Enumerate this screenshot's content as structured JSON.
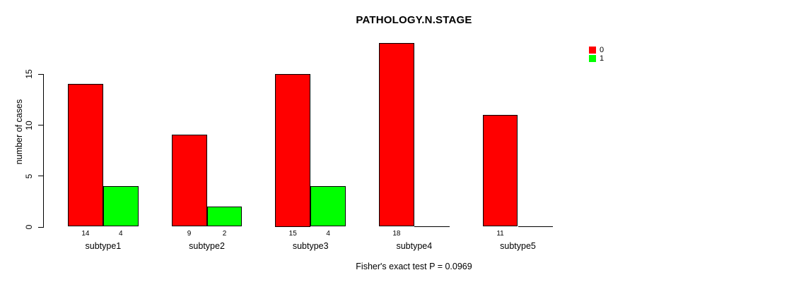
{
  "chart_data": {
    "type": "bar",
    "title": "PATHOLOGY.N.STAGE",
    "ylabel": "number of cases",
    "xlabel": "",
    "caption": "Fisher's exact test P = 0.0969",
    "categories": [
      "subtype1",
      "subtype2",
      "subtype3",
      "subtype4",
      "subtype5"
    ],
    "series": [
      {
        "name": "0",
        "color": "#FF0000",
        "values": [
          14,
          9,
          15,
          18,
          11
        ]
      },
      {
        "name": "1",
        "color": "#00FF00",
        "values": [
          4,
          2,
          4,
          0,
          0
        ]
      }
    ],
    "yticks": [
      0,
      5,
      10,
      15
    ],
    "ylim": [
      0,
      18
    ],
    "grid": false,
    "legend_position": "topright",
    "bar_value_labels": true,
    "background": "#FFFFFF",
    "axis_color": "#000000"
  }
}
